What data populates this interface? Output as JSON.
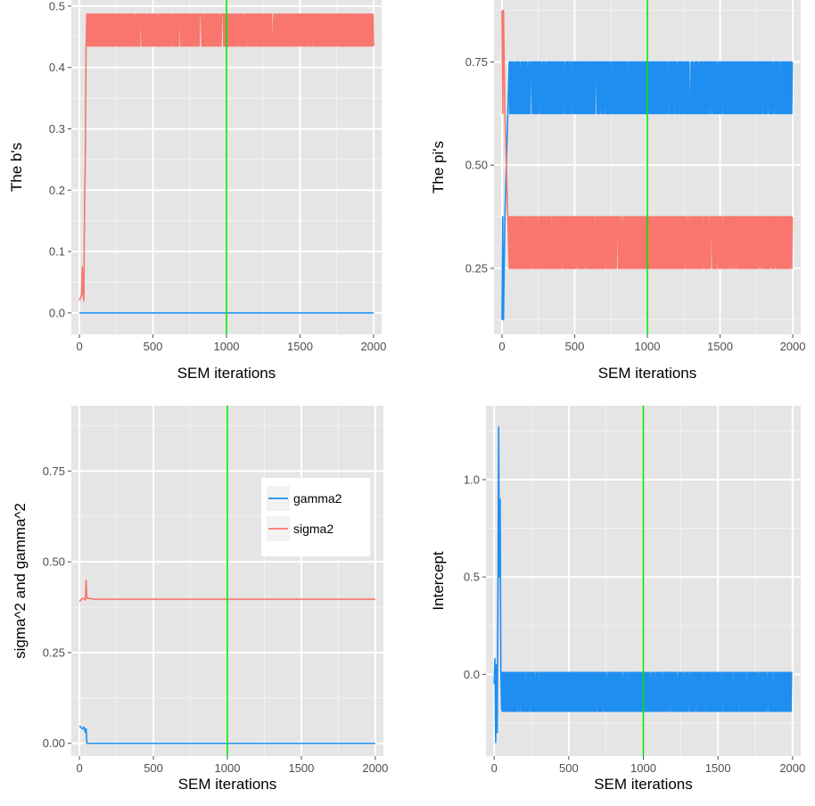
{
  "chart_data": [
    {
      "type": "line",
      "xlabel": "SEM iterations",
      "ylabel": "The b's",
      "xlim": [
        -55,
        2055
      ],
      "ylim": [
        -0.035,
        0.51
      ],
      "xticks": [
        "0",
        "500",
        "1000",
        "1500",
        "2000"
      ],
      "yticks": [
        "0.0",
        "0.1",
        "0.2",
        "0.3",
        "0.4",
        "0.5"
      ],
      "yticks_values": [
        0,
        0.1,
        0.2,
        0.3,
        0.4,
        0.5
      ],
      "grid": true,
      "vline": 1000,
      "series": [
        {
          "color": "#f8766d",
          "burn_in": [
            [
              0,
              0.02
            ],
            [
              15,
              0.03
            ],
            [
              20,
              0.075
            ],
            [
              25,
              0.03
            ],
            [
              30,
              0.02
            ],
            [
              35,
              0.18
            ],
            [
              40,
              0.25
            ],
            [
              45,
              0.43
            ],
            [
              50,
              0.485
            ]
          ],
          "band": [
            0.435,
            0.487
          ],
          "from": 50,
          "to": 2000
        },
        {
          "color": "#1f8ef1",
          "flat": 0.0,
          "from": 0,
          "to": 2000
        }
      ]
    },
    {
      "type": "line",
      "xlabel": "SEM iterations",
      "ylabel": "The pi's",
      "xlim": [
        -55,
        2055
      ],
      "ylim": [
        0.09,
        0.9
      ],
      "xticks": [
        "0",
        "500",
        "1000",
        "1500",
        "2000"
      ],
      "yticks": [
        "0.25",
        "0.50",
        "0.75"
      ],
      "yticks_values": [
        0.25,
        0.5,
        0.75
      ],
      "grid": true,
      "vline": 1000,
      "series": [
        {
          "color": "#1f8ef1",
          "burn_in": [
            [
              0,
              0.125
            ],
            [
              5,
              0.375
            ],
            [
              10,
              0.125
            ],
            [
              20,
              0.375
            ],
            [
              30,
              0.5
            ],
            [
              40,
              0.625
            ],
            [
              50,
              0.75
            ]
          ],
          "band": [
            0.625,
            0.75
          ],
          "from": 50,
          "to": 2000
        },
        {
          "color": "#f8766d",
          "burn_in": [
            [
              0,
              0.875
            ],
            [
              5,
              0.625
            ],
            [
              10,
              0.875
            ],
            [
              20,
              0.625
            ],
            [
              30,
              0.5
            ],
            [
              40,
              0.375
            ],
            [
              50,
              0.25
            ]
          ],
          "band": [
            0.25,
            0.375
          ],
          "from": 50,
          "to": 2000
        }
      ]
    },
    {
      "type": "line",
      "xlabel": "SEM iterations",
      "ylabel": "sigma^2 and gamma^2",
      "xlim": [
        -55,
        2055
      ],
      "ylim": [
        -0.035,
        0.93
      ],
      "xticks": [
        "0",
        "500",
        "1000",
        "1500",
        "2000"
      ],
      "yticks": [
        "0.00",
        "0.25",
        "0.50",
        "0.75"
      ],
      "yticks_values": [
        0,
        0.25,
        0.5,
        0.75
      ],
      "grid": true,
      "vline": 1000,
      "legend": {
        "position": "right",
        "entries": [
          {
            "name": "gamma2",
            "color": "#1f8ef1"
          },
          {
            "name": "sigma2",
            "color": "#f8766d"
          }
        ]
      },
      "series": [
        {
          "name": "gamma2",
          "color": "#1f8ef1",
          "points": [
            [
              0,
              0.048
            ],
            [
              20,
              0.04
            ],
            [
              30,
              0.045
            ],
            [
              40,
              0.03
            ],
            [
              45,
              0.04
            ],
            [
              50,
              0.0
            ],
            [
              2000,
              0.0
            ]
          ]
        },
        {
          "name": "sigma2",
          "color": "#f8766d",
          "points": [
            [
              0,
              0.39
            ],
            [
              20,
              0.4
            ],
            [
              40,
              0.395
            ],
            [
              45,
              0.45
            ],
            [
              50,
              0.4
            ],
            [
              100,
              0.397
            ],
            [
              2000,
              0.397
            ]
          ]
        }
      ]
    },
    {
      "type": "line",
      "xlabel": "SEM iterations",
      "ylabel": "Intercept",
      "xlim": [
        -55,
        2055
      ],
      "ylim": [
        -0.42,
        1.38
      ],
      "xticks": [
        "0",
        "500",
        "1000",
        "1500",
        "2000"
      ],
      "yticks": [
        "0.0",
        "0.5",
        "1.0"
      ],
      "yticks_values": [
        0,
        0.5,
        1
      ],
      "grid": true,
      "vline": 1000,
      "series": [
        {
          "color": "#1f8ef1",
          "burn_in": [
            [
              0,
              -0.05
            ],
            [
              5,
              0.08
            ],
            [
              10,
              -0.35
            ],
            [
              15,
              0.05
            ],
            [
              20,
              -0.3
            ],
            [
              25,
              0.3
            ],
            [
              30,
              1.27
            ],
            [
              35,
              0.5
            ],
            [
              40,
              0.9
            ],
            [
              45,
              0.0
            ],
            [
              50,
              -0.18
            ]
          ],
          "band": [
            -0.19,
            0.01
          ],
          "from": 50,
          "to": 2000
        }
      ]
    }
  ]
}
